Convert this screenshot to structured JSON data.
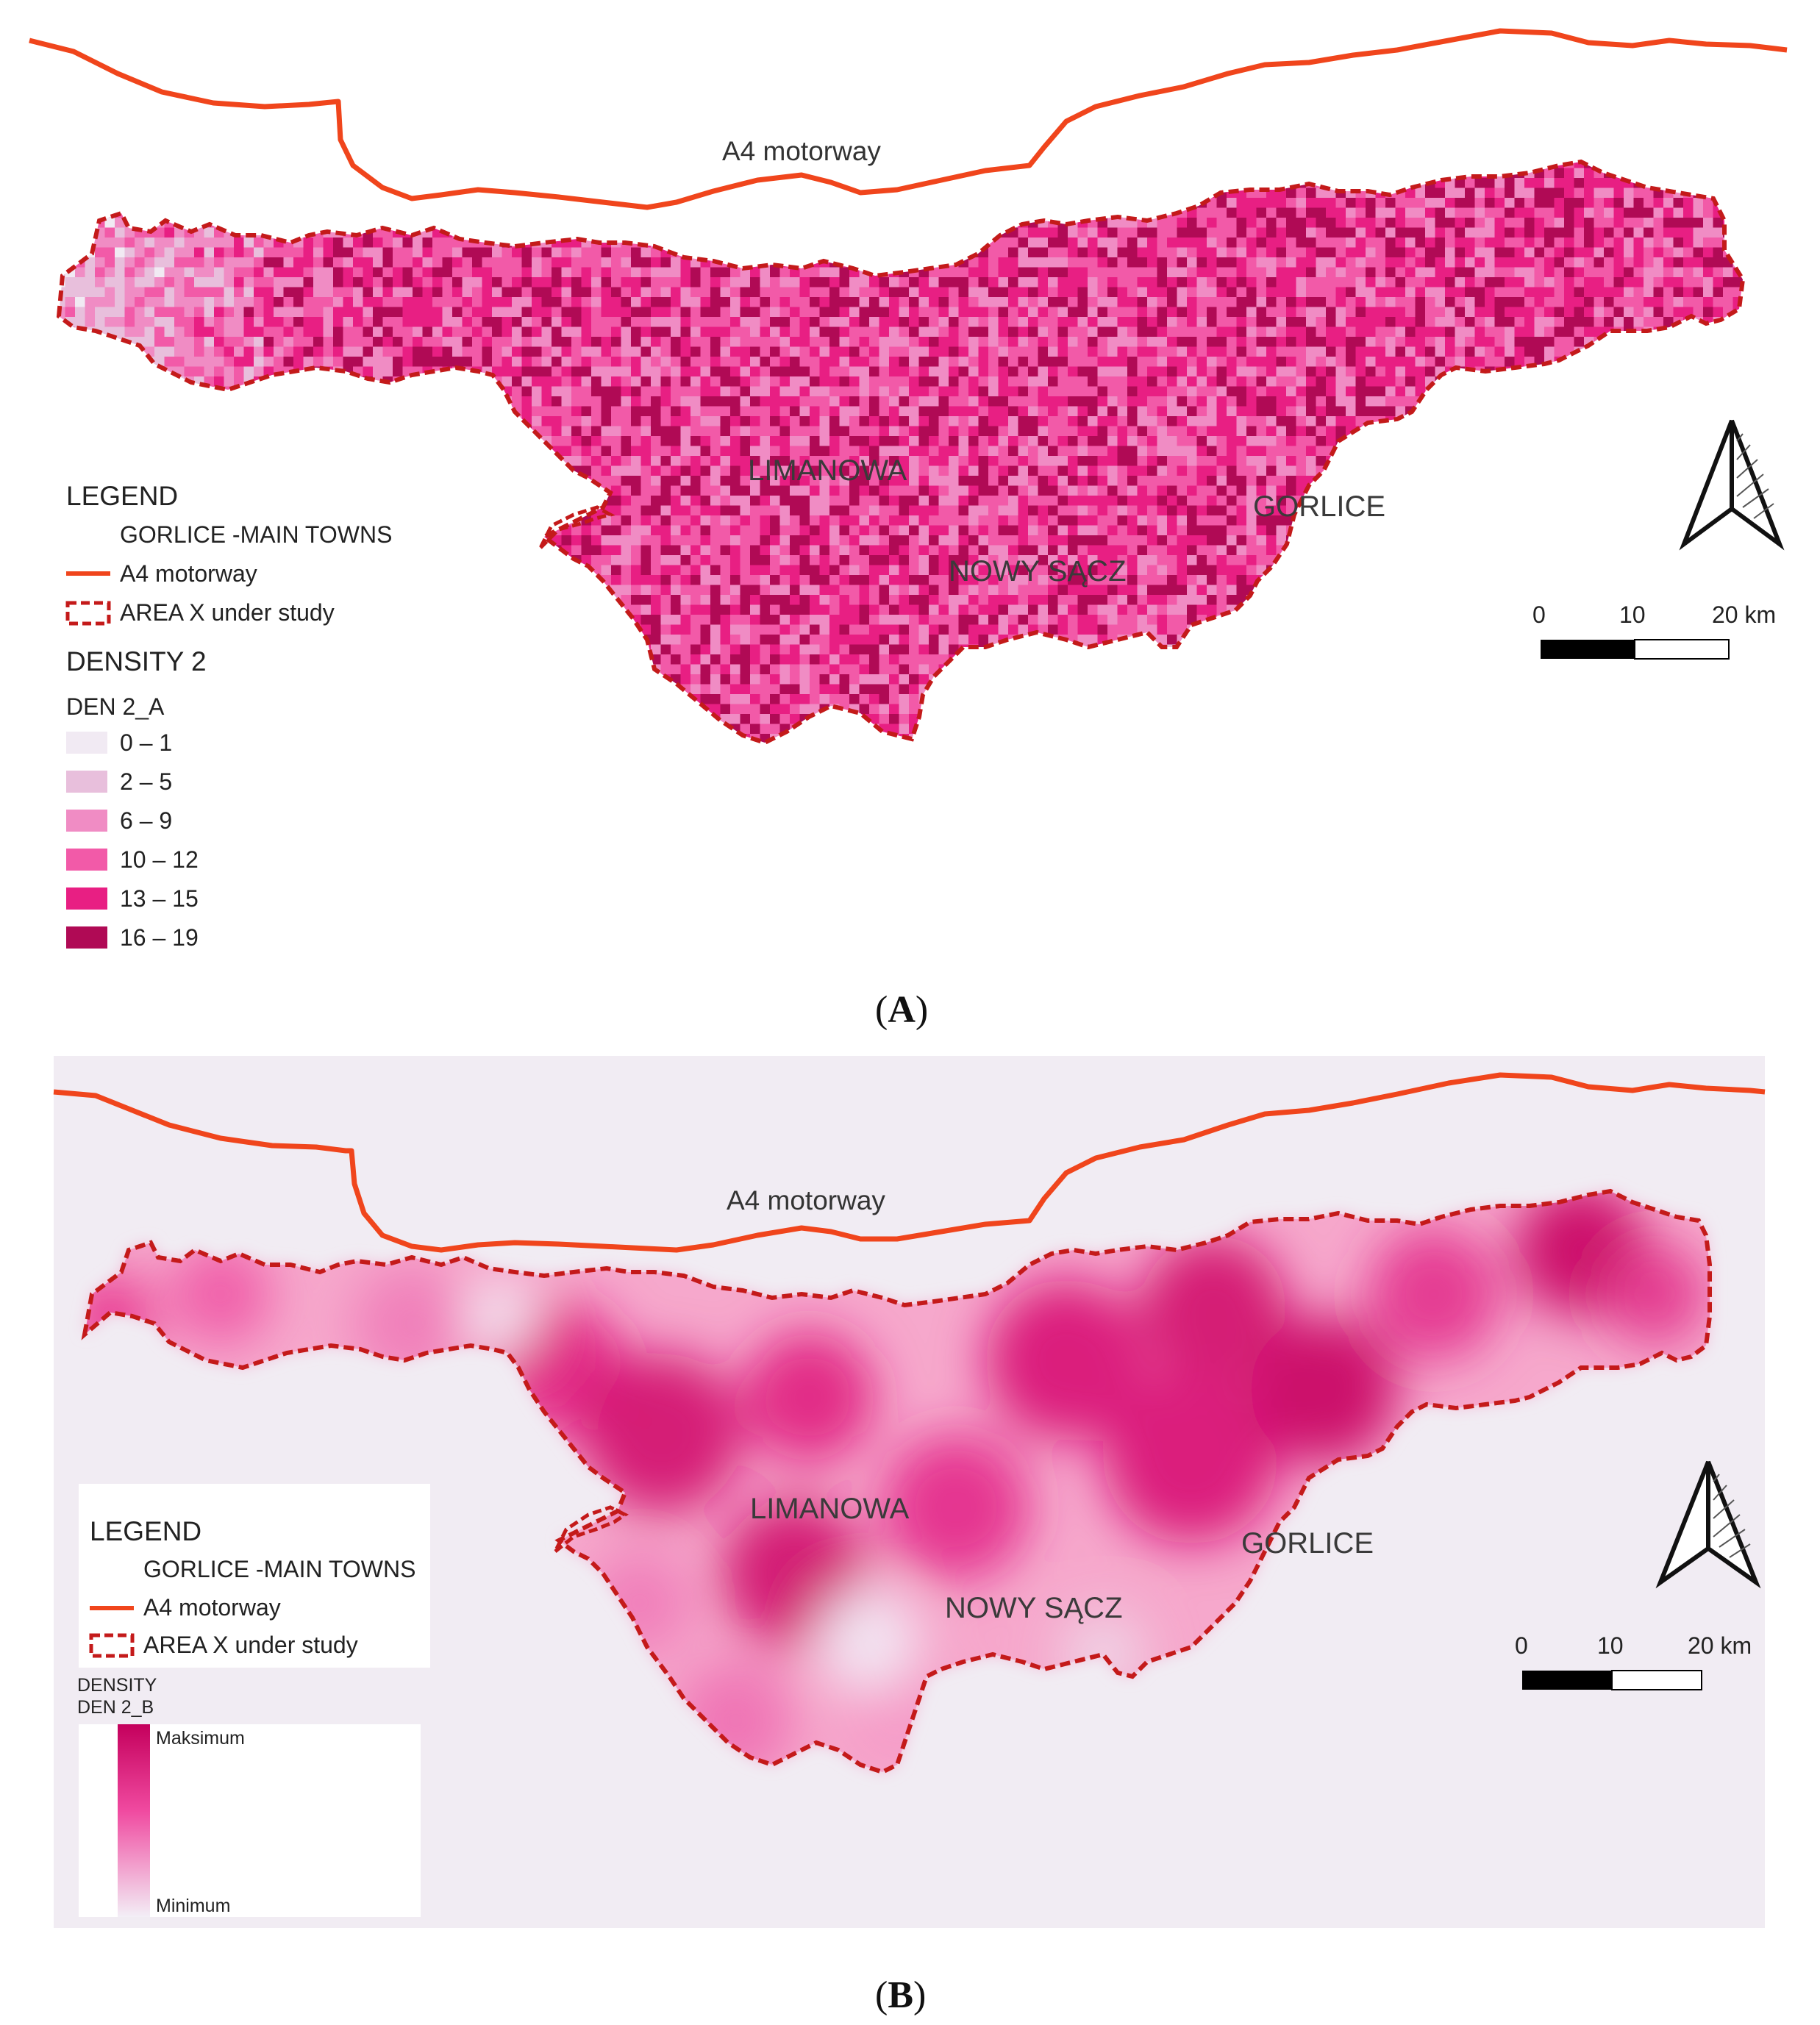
{
  "panel_a": {
    "caption_open": "(",
    "caption_letter": "A",
    "caption_close": ")",
    "road_label": "A4 motorway",
    "towns": [
      "LIMANOWA",
      "NOWY SĄCZ",
      "GORLICE"
    ],
    "legend": {
      "title": "LEGEND",
      "towns_item": "GORLICE  -MAIN TOWNS",
      "road_item": "A4 motorway",
      "area_item": "AREA X under study",
      "density_title": "DENSITY 2",
      "density_layer": "DEN 2_A",
      "classes": [
        {
          "label": "0 – 1",
          "color": "#f1eaf3"
        },
        {
          "label": "2 – 5",
          "color": "#e8bfdc"
        },
        {
          "label": "6 – 9",
          "color": "#f08cc4"
        },
        {
          "label": "10 – 12",
          "color": "#f25aa8"
        },
        {
          "label": "13 – 15",
          "color": "#e81f83"
        },
        {
          "label": "16 – 19",
          "color": "#b00a55"
        }
      ]
    },
    "scale": {
      "labels": [
        "0",
        "10",
        "20 km"
      ]
    }
  },
  "panel_b": {
    "caption_open": "(",
    "caption_letter": "B",
    "caption_close": ")",
    "road_label": "A4 motorway",
    "towns": [
      "LIMANOWA",
      "NOWY SĄCZ",
      "GORLICE"
    ],
    "legend": {
      "title": "LEGEND",
      "towns_item": "GORLICE  -MAIN TOWNS",
      "road_item": "A4 motorway",
      "area_item": "AREA X under study",
      "density_title": "DENSITY",
      "density_layer": "DEN 2_B",
      "ramp_max": "Maksimum",
      "ramp_min": "Minimum"
    },
    "scale": {
      "labels": [
        "0",
        "10",
        "20 km"
      ]
    }
  },
  "colors": {
    "motorway": "#f0451c",
    "boundary": "#c41a1a",
    "map_b_background": "#f1ecf3",
    "density_max": "#c4005c",
    "density_min": "#efe9f2"
  },
  "icons": [
    "north-arrow-icon"
  ]
}
